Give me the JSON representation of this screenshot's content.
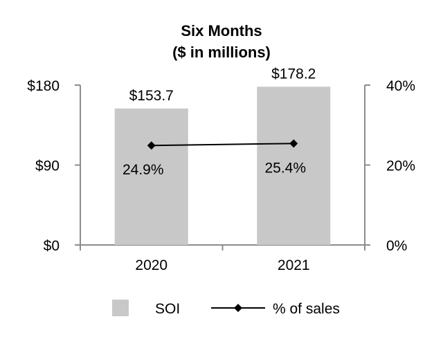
{
  "chart_data": {
    "type": "bar",
    "title": "Six Months",
    "subtitle": "($ in millions)",
    "categories": [
      "2020",
      "2021"
    ],
    "series": [
      {
        "name": "SOI",
        "kind": "bar",
        "axis": "left",
        "values": [
          153.7,
          178.2
        ],
        "labels": [
          "$153.7",
          "$178.2"
        ],
        "color": "#c8c8c8"
      },
      {
        "name": "% of sales",
        "kind": "line",
        "axis": "right",
        "values": [
          24.9,
          25.4
        ],
        "labels": [
          "24.9%",
          "25.4%"
        ],
        "color": "#000000"
      }
    ],
    "left_axis": {
      "ylim": [
        0,
        180
      ],
      "ticks": [
        0,
        90,
        180
      ],
      "tick_labels": [
        "$0",
        "$90",
        "$180"
      ]
    },
    "right_axis": {
      "ylim": [
        0,
        40
      ],
      "ticks": [
        0,
        20,
        40
      ],
      "tick_labels": [
        "0%",
        "20%",
        "40%"
      ]
    },
    "grid": false,
    "legend_position": "bottom"
  }
}
